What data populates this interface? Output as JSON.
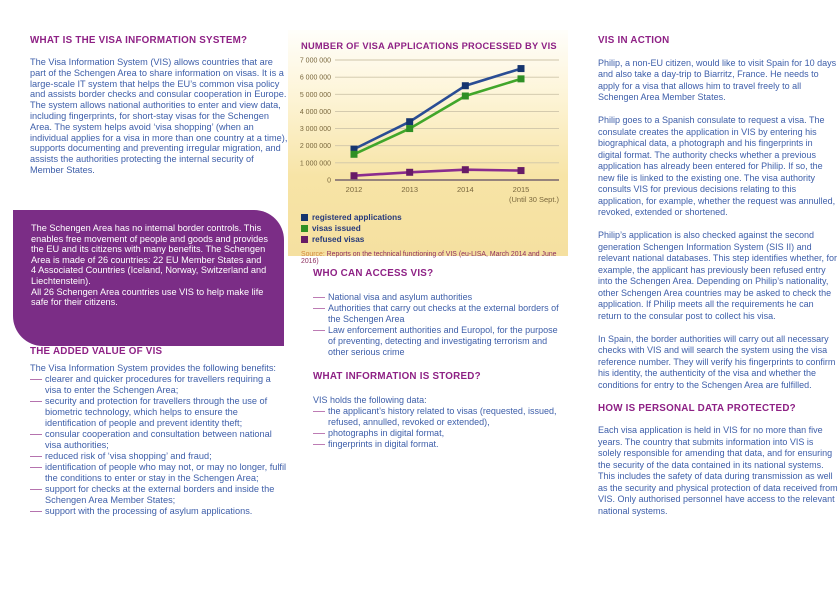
{
  "left": {
    "what_is": {
      "heading": "WHAT IS THE VISA INFORMATION SYSTEM?",
      "body": "The Visa Information System (VIS) allows countries that are part of the Schengen Area to share information on visas. It is a large-scale IT system that helps the EU’s common visa policy and assists border checks and consular cooperation in Europe. The system allows national authorities to enter and view data, including fingerprints, for short-stay visas for the Schengen Area. The system helps avoid ‘visa shopping’ (when an individual applies for a visa in more than one country at a time), supports documenting and preventing irregular migration, and assists the authorities protecting the internal security of Member States."
    },
    "schengen_box": {
      "lines": [
        "The Schengen Area has no internal border controls. This enables free movement of people and goods and provides the EU and its citizens with many benefits. The Schengen Area is made of 26 countries: 22 EU Member States and 4 Associated Countries (Iceland, Norway, Switzerland and Liechtenstein).",
        "All 26 Schengen Area countries use VIS to help make life safe for their citizens."
      ]
    },
    "added_value": {
      "heading": "THE ADDED VALUE OF VIS",
      "intro": "The Visa Information System provides the following benefits:",
      "items": [
        "clearer and quicker procedures for travellers requiring a visa to enter the Schengen Area;",
        "security and protection for travellers through the use of biometric technology, which helps to ensure the identification of people and prevent identity theft;",
        "consular cooperation and consultation between national visa authorities;",
        "reduced risk of ‘visa shopping’ and fraud;",
        "identification of people who may not, or may no longer, fulfil the conditions to enter or stay in the Schengen Area;",
        "support for checks at the external borders and inside the Schengen Area Member States;",
        "support with the processing of asylum applications."
      ]
    }
  },
  "middle": {
    "source_label": "Source:",
    "source_text": "Reports on the technical functioning of VIS (eu-LISA, March 2014 and June 2016)",
    "who_can_access": {
      "heading": "WHO CAN ACCESS VIS?",
      "items": [
        "National visa and asylum authorities",
        "Authorities that carry out checks at the external borders of the Schengen Area",
        "Law enforcement authorities and Europol, for the purpose of preventing, detecting and investigating terrorism and other serious crime"
      ]
    },
    "what_stored": {
      "heading": "WHAT INFORMATION IS STORED?",
      "intro": "VIS holds the following data:",
      "items": [
        "the applicant’s history related to visas (requested, issued, refused, annulled, revoked or extended),",
        "photographs in digital format,",
        "fingerprints in digital format."
      ]
    }
  },
  "right": {
    "vis_in_action": {
      "heading": "VIS IN ACTION",
      "paragraphs": [
        "Philip, a non-EU citizen, would like to visit Spain for 10 days and also take a day-trip to Biarritz, France. He needs to apply for a visa that allows him to travel freely to all Schengen Area Member States.",
        "Philip goes to a Spanish consulate to request a visa. The consulate creates the application in VIS by entering his biographical data, a photograph and his fingerprints in digital format. The authority checks whether a previous application has already been entered for Philip. If so, the new file is linked to the existing one. The visa authority consults VIS for previous decisions relating to this application, for example, whether the request was annulled, revoked, extended or shortened.",
        "Philip’s application is also checked against the second generation Schengen Information System (SIS II) and relevant national databases. This step identifies whether, for example, the applicant has previously been refused entry into the Schengen Area. Depending on Philip’s nationality, other Schengen Area countries may be asked to check the application. If Philip meets all the requirements he can return to the consular post to collect his visa.",
        "In Spain, the border authorities will carry out all necessary checks with VIS and will search the system using the visa reference number. They will verify his fingerprints to confirm his identity, the authenticity of the visa and whether the conditions for entry to the Schengen Area are fulfilled."
      ]
    },
    "data_protected": {
      "heading": "HOW IS PERSONAL DATA PROTECTED?",
      "paragraphs": [
        "Each visa application is held in VIS for no more than five years. The country that submits information into VIS is solely responsible for amending that data, and for ensuring the security of the data contained in its national systems. This includes the safety of data during transmission as well as the security and physical protection of data received from VIS. Only authorised personnel have access to the relevant national systems."
      ]
    }
  },
  "colors": {
    "heading_purple": "#8e2185",
    "body_blue": "#3d5ea9",
    "box_purple": "#7b2d86",
    "bullet_pink": "#b573ae",
    "panel_yellow": "#f5e0a0",
    "grid": "#cfc5a9",
    "axis": "#5c4a63",
    "tick_text": "#7a683e",
    "source_label_orange": "#d0883c",
    "source_text_maroon": "#8e3060"
  },
  "chart_data": {
    "type": "line",
    "title": "NUMBER OF VISA APPLICATIONS PROCESSED BY VIS",
    "categories": [
      "2012",
      "2013",
      "2014",
      "2015"
    ],
    "x_note": "(Until 30 Sept.)",
    "series": [
      {
        "name": "registered applications",
        "color": "#2a4d94",
        "marker": "#16356e",
        "values": [
          1800000,
          3400000,
          5500000,
          6500000
        ]
      },
      {
        "name": "visas issued",
        "color": "#41a62a",
        "marker": "#2f8f25",
        "values": [
          1500000,
          3000000,
          4900000,
          5900000
        ]
      },
      {
        "name": "refused visas",
        "color": "#8a2d8e",
        "marker": "#671b66",
        "values": [
          250000,
          450000,
          600000,
          550000
        ]
      }
    ],
    "ylim": [
      0,
      7000000
    ],
    "ytick_step": 1000000,
    "ytick_labels": [
      "0",
      "1 000 000",
      "2 000 000",
      "3 000 000",
      "4 000 000",
      "5 000 000",
      "6 000 000",
      "7 000 000"
    ],
    "grid": true,
    "legend_position": "bottom-left"
  }
}
